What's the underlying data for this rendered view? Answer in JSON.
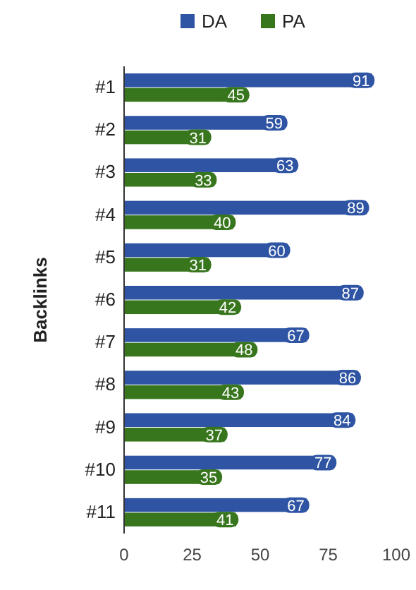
{
  "chart_data": {
    "type": "bar",
    "orientation": "horizontal",
    "ylabel": "Backlinks",
    "categories": [
      "#1",
      "#2",
      "#3",
      "#4",
      "#5",
      "#6",
      "#7",
      "#8",
      "#9",
      "#10",
      "#11"
    ],
    "series": [
      {
        "name": "DA",
        "color": "#2e54a3",
        "values": [
          91,
          59,
          63,
          89,
          60,
          87,
          67,
          86,
          84,
          77,
          67
        ]
      },
      {
        "name": "PA",
        "color": "#38761d",
        "values": [
          45,
          31,
          33,
          40,
          31,
          42,
          48,
          43,
          37,
          35,
          41
        ]
      }
    ],
    "xlim": [
      0,
      100
    ],
    "xticks": [
      0,
      25,
      50,
      75,
      100
    ],
    "data_labels": true,
    "legend": "top"
  }
}
